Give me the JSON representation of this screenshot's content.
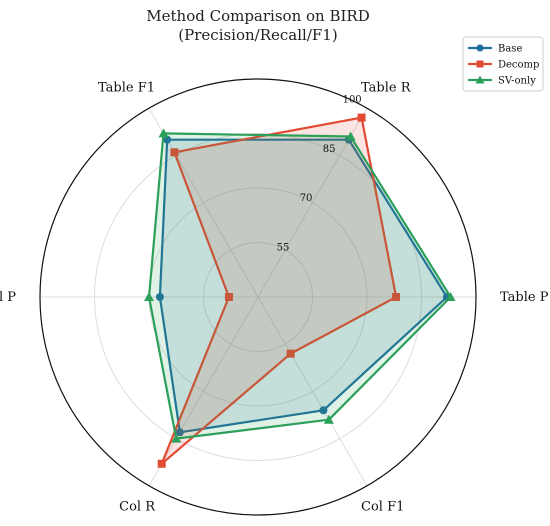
{
  "chart_data": {
    "type": "radar",
    "title": "Method Comparison on BIRD",
    "subtitle": "(Precision/Recall/F1)",
    "axes": [
      "Table P",
      "Table R",
      "Table F1",
      "Col P",
      "Col R",
      "Col F1"
    ],
    "rlim": [
      40,
      100
    ],
    "rticks": [
      55,
      70,
      85,
      100
    ],
    "grid": true,
    "legend_position": "top-right",
    "series": [
      {
        "name": "Base",
        "color": "#1f6f9f",
        "marker": "circle",
        "values": [
          92,
          90,
          90,
          67,
          83,
          76
        ]
      },
      {
        "name": "Decomp",
        "color": "#e24a33",
        "marker": "square",
        "values": [
          78,
          97,
          86,
          48,
          93,
          58
        ]
      },
      {
        "name": "SV-only",
        "color": "#2ca05a",
        "marker": "triangle",
        "values": [
          93,
          91,
          92,
          70,
          85,
          79
        ]
      }
    ]
  }
}
